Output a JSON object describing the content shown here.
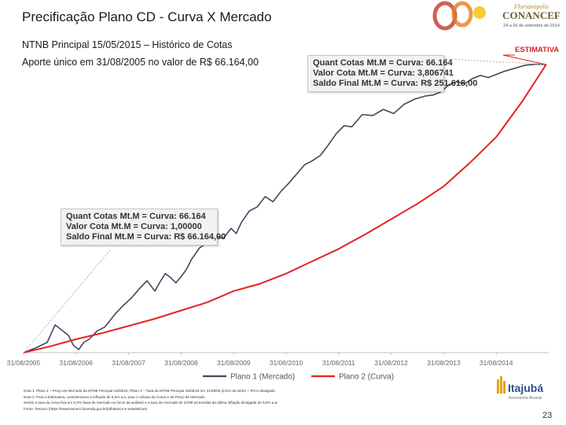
{
  "header": {
    "title": "Precificação Plano CD - Curva X Mercado",
    "subtitle_1": "NTNB Principal 15/05/2015 – Histórico de Cotas",
    "subtitle_2": "Aporte único em 31/08/2005 no valor de R$ 66.164,00"
  },
  "callouts": {
    "top": [
      "Quant Cotas Mt.M = Curva: 66.164",
      "Valor Cota Mt.M = Curva: 3,806741",
      "Saldo Final Mt.M = Curva: R$ 251.618,00"
    ],
    "bottom": [
      "Quant Cotas Mt.M = Curva: 66.164",
      "Valor Cota Mt.M = Curva: 1,00000",
      "Saldo Final Mt.M = Curva: R$ 66.164,00"
    ]
  },
  "estimativa_label": "ESTIMATIVA",
  "notes": [
    "Nota 1: Plano 1 – Preço de Mercado da NTNB Principal 15/05/15; Plano 2 – Taxa da NTNB Principal 15/05/15 em 31/08/05 (início da série) + IPCA divulgado",
    "Nota 2: Para a Estimativa, consideramos a inflação de 6,5% a.a. para o cálculo da Curva e do Preço de Mercado.",
    "Sendo a taxa da curva fixa em 6,3% (taxa de mercado no início da análise) e a taxa de mercado de 31/08 acrescidas da última inflação divulgada de 6,5% a.a.",
    "Fonte: Tesouro (https://www.tesouro.fazenda.gov.br/pt/balanco-e-estatisticas)"
  ],
  "logos": {
    "top_text": "CONANCEF",
    "top_tagline": "Florianópolis",
    "top_dates": "24 a 26 de setembro de 2014",
    "bottom_text": "Itajubá",
    "bottom_tagline": "Assessoria Atuarial"
  },
  "page_number": "23",
  "colors": {
    "plano1": "#3d4a5c",
    "plano2": "#e52222",
    "estimativa": "#e02020"
  },
  "chart_data": {
    "type": "line",
    "title": "",
    "xlabel": "",
    "ylabel": "",
    "x_ticks": [
      "31/08/2005",
      "31/08/2006",
      "31/08/2007",
      "31/08/2008",
      "31/08/2009",
      "31/08/2010",
      "31/08/2011",
      "31/08/2012",
      "31/08/2013",
      "31/08/2014"
    ],
    "x_range": [
      0,
      10
    ],
    "ylim": [
      1.0,
      3.806741
    ],
    "series": [
      {
        "name": "Plano 1 (Mercado)",
        "x": [
          0,
          0.25,
          0.45,
          0.6,
          0.75,
          0.85,
          0.95,
          1.05,
          1.15,
          1.25,
          1.4,
          1.55,
          1.75,
          1.9,
          2.05,
          2.2,
          2.35,
          2.5,
          2.6,
          2.7,
          2.8,
          2.9,
          3.0,
          3.1,
          3.2,
          3.35,
          3.5,
          3.65,
          3.8,
          3.95,
          4.05,
          4.15,
          4.3,
          4.45,
          4.6,
          4.75,
          4.9,
          5.05,
          5.2,
          5.35,
          5.5,
          5.65,
          5.8,
          5.95,
          6.1,
          6.25,
          6.45,
          6.65,
          6.85,
          7.05,
          7.25,
          7.45,
          7.65,
          7.8,
          7.95,
          8.1,
          8.25,
          8.4,
          8.55,
          8.7,
          8.85,
          9.0,
          9.15,
          9.35,
          9.55,
          9.75,
          9.95
        ],
        "values": [
          1.0,
          1.05,
          1.1,
          1.27,
          1.21,
          1.17,
          1.07,
          1.03,
          1.1,
          1.13,
          1.21,
          1.25,
          1.38,
          1.46,
          1.53,
          1.62,
          1.7,
          1.6,
          1.69,
          1.77,
          1.73,
          1.68,
          1.74,
          1.81,
          1.91,
          2.02,
          2.07,
          2.14,
          2.11,
          2.21,
          2.16,
          2.27,
          2.38,
          2.42,
          2.52,
          2.47,
          2.57,
          2.65,
          2.74,
          2.83,
          2.87,
          2.92,
          3.02,
          3.13,
          3.21,
          3.2,
          3.32,
          3.31,
          3.37,
          3.33,
          3.42,
          3.47,
          3.5,
          3.51,
          3.54,
          3.61,
          3.64,
          3.62,
          3.67,
          3.7,
          3.68,
          3.71,
          3.74,
          3.77,
          3.8,
          3.81,
          3.806741
        ]
      },
      {
        "name": "Plano 2 (Curva)",
        "x": [
          0,
          0.5,
          1.0,
          1.5,
          2.0,
          2.5,
          3.0,
          3.5,
          4.0,
          4.5,
          5.0,
          5.5,
          6.0,
          6.5,
          7.0,
          7.5,
          8.0,
          8.5,
          9.0,
          9.5,
          9.95
        ],
        "values": [
          1.0,
          1.06,
          1.13,
          1.19,
          1.26,
          1.33,
          1.41,
          1.49,
          1.6,
          1.67,
          1.77,
          1.89,
          2.01,
          2.15,
          2.3,
          2.45,
          2.62,
          2.85,
          3.1,
          3.45,
          3.806741
        ]
      }
    ],
    "legend": "bottom-center",
    "grid": false
  }
}
